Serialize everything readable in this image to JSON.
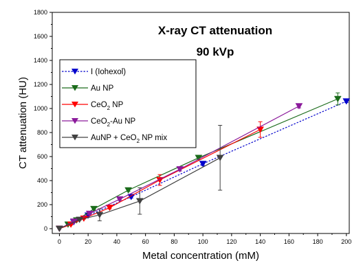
{
  "chart_data": {
    "type": "line",
    "title": "X-ray CT attenuation",
    "subtitle": "90 kVp",
    "xlabel": "Metal concentration (mM)",
    "ylabel": "CT attenuation (HU)",
    "xlim": [
      -5,
      202
    ],
    "ylim": [
      -40,
      1800
    ],
    "xticks": [
      0,
      20,
      40,
      60,
      80,
      100,
      120,
      140,
      160,
      180,
      200
    ],
    "yticks": [
      0,
      200,
      400,
      600,
      800,
      1000,
      1200,
      1400,
      1600,
      1800
    ],
    "grid": false,
    "legend_position": "upper-left",
    "series": [
      {
        "name": "I (Iohexol)",
        "color": "#0000cc",
        "line_style": "dotted",
        "marker": "triangle-down",
        "points": [
          [
            0,
            0
          ],
          [
            10,
            55
          ],
          [
            20,
            110
          ],
          [
            50,
            265
          ],
          [
            100,
            540
          ],
          [
            200,
            1060
          ]
        ],
        "errors": [
          0,
          5,
          5,
          10,
          15,
          10
        ]
      },
      {
        "name": "Au NP",
        "color": "#1a6b1a",
        "line_style": "solid",
        "marker": "triangle-down",
        "points": [
          [
            0,
            0
          ],
          [
            6,
            35
          ],
          [
            12,
            70
          ],
          [
            24,
            165
          ],
          [
            48,
            320
          ],
          [
            97,
            590
          ],
          [
            194,
            1080
          ]
        ],
        "errors": [
          0,
          5,
          5,
          10,
          10,
          15,
          50
        ]
      },
      {
        "name": "CeO2 NP",
        "color": "#ff0000",
        "line_style": "solid",
        "marker": "triangle-down",
        "points": [
          [
            0,
            0
          ],
          [
            8,
            35
          ],
          [
            17,
            85
          ],
          [
            35,
            175
          ],
          [
            70,
            405
          ],
          [
            140,
            825
          ]
        ],
        "errors": [
          0,
          5,
          5,
          10,
          45,
          65
        ]
      },
      {
        "name": "CeO2-Au NP",
        "color": "#8b1a9b",
        "line_style": "solid",
        "marker": "triangle-down",
        "points": [
          [
            0,
            0
          ],
          [
            10,
            60
          ],
          [
            21,
            125
          ],
          [
            42,
            245
          ],
          [
            84,
            495
          ],
          [
            167,
            1020
          ]
        ],
        "errors": [
          0,
          5,
          5,
          10,
          15,
          15
        ]
      },
      {
        "name": "AuNP + CeO2 NP mix",
        "color": "#404040",
        "line_style": "solid",
        "marker": "triangle-down",
        "points": [
          [
            0,
            0
          ],
          [
            14,
            75
          ],
          [
            28,
            115
          ],
          [
            56,
            230
          ],
          [
            112,
            590
          ]
        ],
        "errors": [
          0,
          5,
          50,
          110,
          270
        ]
      }
    ]
  },
  "legend": {
    "items": [
      {
        "main": "I (Iohexol)",
        "sub": "",
        "tail": ""
      },
      {
        "main": "Au NP",
        "sub": "",
        "tail": ""
      },
      {
        "main": "CeO",
        "sub": "2",
        "tail": " NP"
      },
      {
        "main": "CeO",
        "sub": "2",
        "tail": "-Au NP"
      },
      {
        "main": "AuNP + CeO",
        "sub": "2",
        "tail": " NP mix"
      }
    ]
  }
}
